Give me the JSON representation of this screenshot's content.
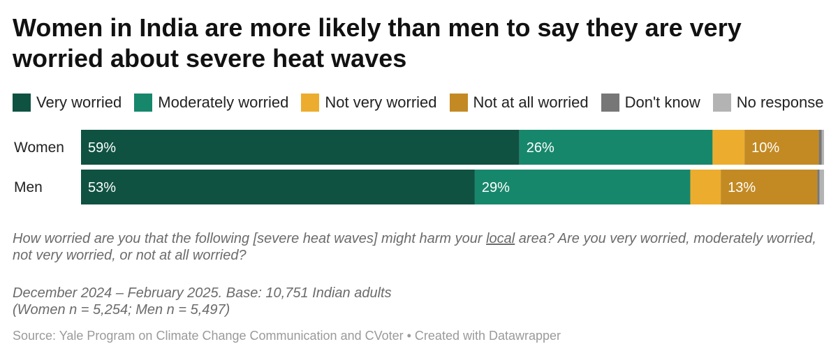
{
  "title": "Women in India are more likely than men to say they are very worried about severe heat waves",
  "legend": [
    {
      "label": "Very worried",
      "color": "#0f5241"
    },
    {
      "label": "Moderately worried",
      "color": "#17876c"
    },
    {
      "label": "Not very worried",
      "color": "#ecad2e"
    },
    {
      "label": "Not at all worried",
      "color": "#c38a23"
    },
    {
      "label": "Don't know",
      "color": "#777777"
    },
    {
      "label": "No response",
      "color": "#b3b3b3"
    }
  ],
  "question": {
    "before": "How worried are you that the following [severe heat waves] might harm your ",
    "underlined": "local",
    "after": " area? Are you very worried, moderately worried, not very worried, or not at all worried?"
  },
  "meta_line1": "December 2024 – February 2025. Base: 10,751 Indian adults",
  "meta_line2": "(Women n = 5,254; Men n = 5,497)",
  "source": "Source: Yale Program on Climate Change Communication and CVoter • Created with Datawrapper",
  "chart_data": {
    "type": "bar",
    "orientation": "horizontal",
    "stacked": true,
    "categories": [
      "Women",
      "Men"
    ],
    "xlim": [
      0,
      100
    ],
    "series": [
      {
        "name": "Very worried",
        "color": "#0f5241",
        "values": [
          59,
          53
        ],
        "labels": [
          "59%",
          "53%"
        ]
      },
      {
        "name": "Moderately worried",
        "color": "#17876c",
        "values": [
          26,
          29
        ],
        "labels": [
          "26%",
          "29%"
        ]
      },
      {
        "name": "Not very worried",
        "color": "#ecad2e",
        "values": [
          4.3,
          4.1
        ],
        "labels": [
          "",
          ""
        ]
      },
      {
        "name": "Not at all worried",
        "color": "#c38a23",
        "values": [
          10,
          13
        ],
        "labels": [
          "10%",
          "13%"
        ]
      },
      {
        "name": "Don't know",
        "color": "#777777",
        "values": [
          0.4,
          0.3
        ],
        "labels": [
          "",
          ""
        ]
      },
      {
        "name": "No response",
        "color": "#b3b3b3",
        "values": [
          0.3,
          0.6
        ],
        "labels": [
          "",
          ""
        ]
      }
    ]
  }
}
